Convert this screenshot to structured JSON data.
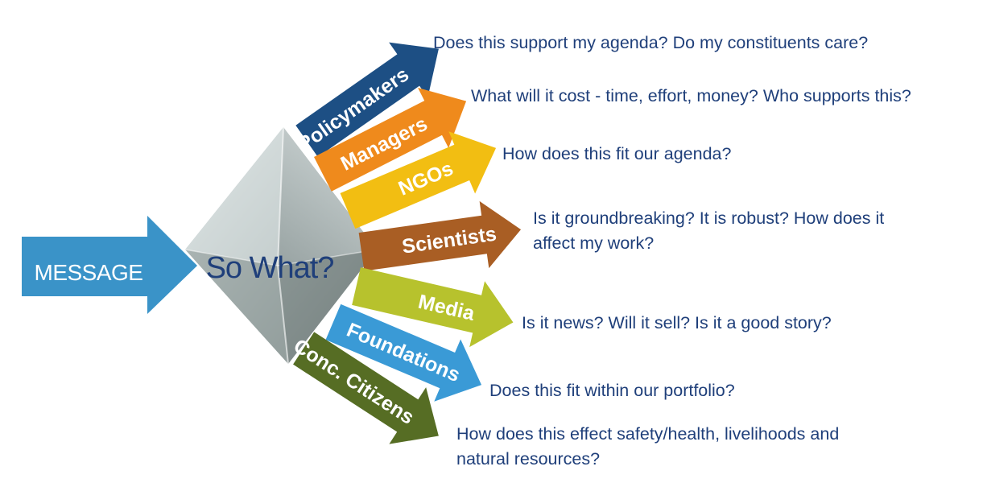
{
  "message": {
    "label": "MESSAGE",
    "color": "#3a93c8"
  },
  "center": {
    "label": "So What?",
    "color": "#1f3f7a"
  },
  "audiences": [
    {
      "label": "Policymakers",
      "color": "#1d4f84",
      "question_lines": [
        "Does this support my agenda? Do my constituents care?"
      ]
    },
    {
      "label": "Managers",
      "color": "#ef8a1c",
      "question_lines": [
        "What will it cost - time, effort, money? Who supports this?"
      ]
    },
    {
      "label": "NGOs",
      "color": "#f2be12",
      "question_lines": [
        "How does this fit our agenda?"
      ]
    },
    {
      "label": "Scientists",
      "color": "#a95e24",
      "question_lines": [
        "Is it groundbreaking? It is robust? How does it",
        "affect my work?"
      ]
    },
    {
      "label": "Media",
      "color": "#b7c22d",
      "question_lines": [
        "Is it news? Will it sell? Is it a good story?"
      ]
    },
    {
      "label": "Foundations",
      "color": "#3a9ad6",
      "question_lines": [
        "Does this fit within our portfolio?"
      ]
    },
    {
      "label": "Conc. Citizens",
      "color": "#566d24",
      "question_lines": [
        "How does this effect safety/health, livelihoods and",
        "natural resources?"
      ]
    }
  ]
}
